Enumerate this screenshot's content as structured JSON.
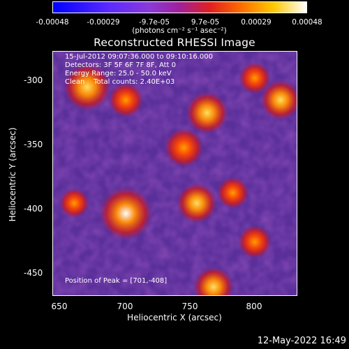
{
  "colorbar": {
    "ticks": [
      "-0.00048",
      "-0.00029",
      "-9.7e-05",
      "9.7e-05",
      "0.00029",
      "0.00048"
    ],
    "unit_label": "(photons cm⁻² s⁻¹ asec⁻²)"
  },
  "plot": {
    "title": "Reconstructed RHESSI Image",
    "annotations": [
      "15-Jul-2012 09:07:36.000 to 09:10:16.000",
      "Detectors: 3F 5F 6F 7F 8F, Att 0",
      "Energy Range: 25.0 - 50.0 keV",
      "Clean    Total counts: 2.40E+03"
    ],
    "peak": "Position of Peak = [701,-408]"
  },
  "footer": {
    "timestamp": "12-May-2022 16:49"
  },
  "chart_data": {
    "type": "heatmap",
    "title": "Reconstructed RHESSI Image",
    "xlabel": "Heliocentric X (arcsec)",
    "ylabel": "Heliocentric Y (arcsec)",
    "xlim": [
      643,
      833
    ],
    "ylim": [
      -472,
      -282
    ],
    "xticks": [
      650,
      700,
      750,
      800
    ],
    "yticks": [
      -300,
      -350,
      -400,
      -450
    ],
    "colorbar_range": [
      -0.00048,
      0.00048
    ],
    "colormap": "blue-purple-red-yellow-white",
    "peak_position": [
      701,
      -408
    ],
    "sources": [
      {
        "x": 700,
        "y": -408,
        "value": 0.00048
      },
      {
        "x": 670,
        "y": -310,
        "value": 0.0004
      },
      {
        "x": 763,
        "y": -330,
        "value": 0.00033
      },
      {
        "x": 820,
        "y": -320,
        "value": 0.0003
      },
      {
        "x": 755,
        "y": -400,
        "value": 0.0003
      },
      {
        "x": 745,
        "y": -357,
        "value": 0.00028
      },
      {
        "x": 768,
        "y": -465,
        "value": 0.0003
      },
      {
        "x": 800,
        "y": -430,
        "value": 0.0002
      },
      {
        "x": 700,
        "y": -320,
        "value": 0.00022
      },
      {
        "x": 783,
        "y": -392,
        "value": 0.00018
      },
      {
        "x": 800,
        "y": -303,
        "value": 0.00018
      },
      {
        "x": 660,
        "y": -400,
        "value": 0.00015
      }
    ],
    "colors": {
      "background": "#000000",
      "low": "#2828ff",
      "mid": "#7a3aa8",
      "high": "#ff3a00",
      "peak": "#ffffff"
    }
  }
}
